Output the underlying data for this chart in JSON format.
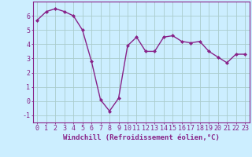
{
  "x": [
    0,
    1,
    2,
    3,
    4,
    5,
    6,
    7,
    8,
    9,
    10,
    11,
    12,
    13,
    14,
    15,
    16,
    17,
    18,
    19,
    20,
    21,
    22,
    23
  ],
  "y": [
    5.7,
    6.3,
    6.5,
    6.3,
    6.0,
    5.0,
    2.8,
    0.1,
    -0.7,
    0.2,
    3.9,
    4.5,
    3.5,
    3.5,
    4.5,
    4.6,
    4.2,
    4.1,
    4.2,
    3.5,
    3.1,
    2.7,
    3.3,
    3.3
  ],
  "line_color": "#882288",
  "marker": "D",
  "marker_size": 2.0,
  "bg_color": "#cceeff",
  "grid_color": "#aacccc",
  "axis_color": "#882288",
  "xlabel": "Windchill (Refroidissement éolien,°C)",
  "ylim": [
    -1.5,
    7.0
  ],
  "xlim": [
    -0.5,
    23.5
  ],
  "yticks": [
    -1,
    0,
    1,
    2,
    3,
    4,
    5,
    6
  ],
  "xticks": [
    0,
    1,
    2,
    3,
    4,
    5,
    6,
    7,
    8,
    9,
    10,
    11,
    12,
    13,
    14,
    15,
    16,
    17,
    18,
    19,
    20,
    21,
    22,
    23
  ],
  "font_color": "#882288",
  "tick_fontsize": 6.0,
  "xlabel_fontsize": 6.5,
  "linewidth": 1.0
}
